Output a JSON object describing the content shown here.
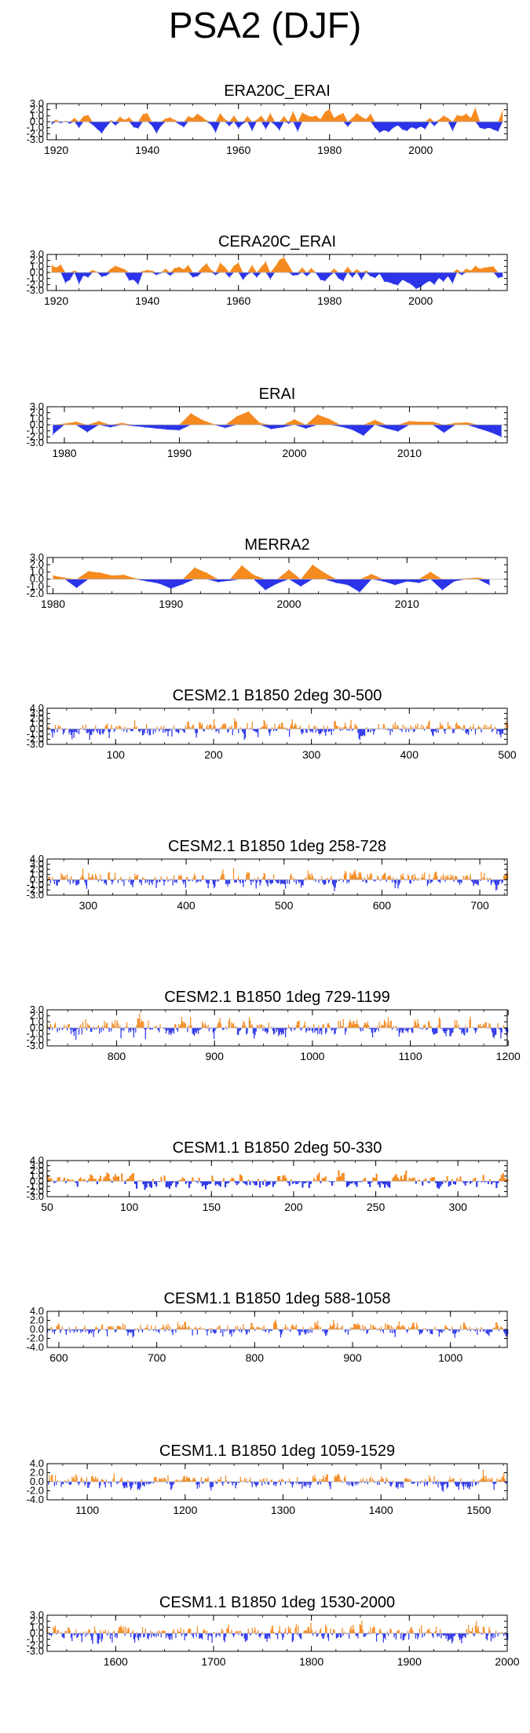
{
  "figure": {
    "title": "PSA2 (DJF)"
  },
  "colors": {
    "positive": "#f58a1f",
    "negative": "#2b34e8",
    "axis": "#000000",
    "zero_line": "#b0b0b0"
  },
  "chart_data": [
    {
      "type": "area",
      "title": "ERA20C_ERAI",
      "xlim": [
        1918,
        2019
      ],
      "ylim": [
        -3,
        3
      ],
      "yticks": [
        "3.0",
        "2.0",
        "1.0",
        "0.0",
        "-1.0",
        "-2.0",
        "-3.0"
      ],
      "xticks": [
        1920,
        1940,
        1960,
        1980,
        2000
      ],
      "xtick_labels": [
        "1920",
        "1940",
        "1960",
        "1980",
        "2000"
      ],
      "x": [
        1919,
        1920,
        1921,
        1922,
        1923,
        1924,
        1925,
        1926,
        1927,
        1928,
        1929,
        1930,
        1931,
        1932,
        1933,
        1934,
        1935,
        1936,
        1937,
        1938,
        1939,
        1940,
        1941,
        1942,
        1943,
        1944,
        1945,
        1946,
        1947,
        1948,
        1949,
        1950,
        1951,
        1952,
        1953,
        1954,
        1955,
        1956,
        1957,
        1958,
        1959,
        1960,
        1961,
        1962,
        1963,
        1964,
        1965,
        1966,
        1967,
        1968,
        1969,
        1970,
        1971,
        1972,
        1973,
        1974,
        1975,
        1976,
        1977,
        1978,
        1979,
        1980,
        1981,
        1982,
        1983,
        1984,
        1985,
        1986,
        1987,
        1988,
        1989,
        1990,
        1991,
        1992,
        1993,
        1994,
        1995,
        1996,
        1997,
        1998,
        1999,
        2000,
        2001,
        2002,
        2003,
        2004,
        2005,
        2006,
        2007,
        2008,
        2009,
        2010,
        2011,
        2012,
        2013,
        2014,
        2015,
        2016,
        2017,
        2018
      ],
      "values": [
        -0.4,
        0.3,
        -0.2,
        0.1,
        -0.3,
        0.6,
        -1.0,
        0.9,
        1.1,
        -0.5,
        -1.2,
        -1.9,
        -0.8,
        0.2,
        -0.6,
        0.8,
        0.3,
        0.7,
        -0.9,
        -1.1,
        1.2,
        1.4,
        -0.6,
        -1.9,
        -0.7,
        0.5,
        0.7,
        0.3,
        -0.4,
        -0.9,
        0.9,
        0.6,
        1.3,
        0.8,
        0.2,
        -0.5,
        -1.8,
        1.4,
        0.4,
        -0.7,
        1.0,
        -1.1,
        -0.3,
        0.9,
        -1.5,
        0.3,
        1.0,
        -1.2,
        1.4,
        -0.5,
        -1.4,
        0.9,
        -0.3,
        1.7,
        -1.6,
        1.5,
        1.1,
        0.8,
        1.0,
        0.4,
        1.6,
        2.1,
        0.6,
        1.1,
        1.4,
        -0.8,
        0.6,
        1.4,
        0.8,
        0.4,
        1.3,
        -1.0,
        -1.8,
        -1.4,
        -1.7,
        -1.0,
        -0.6,
        -1.3,
        -1.5,
        -0.9,
        -1.2,
        -0.8,
        -1.2,
        0.6,
        -0.7,
        0.3,
        1.0,
        0.6,
        -1.5,
        1.1,
        0.9,
        1.3,
        0.6,
        2.3,
        -1.0,
        -1.2,
        -1.0,
        -1.3,
        -1.6,
        1.9
      ]
    },
    {
      "type": "area",
      "title": "CERA20C_ERAI",
      "xlim": [
        1918,
        2019
      ],
      "ylim": [
        -3,
        3
      ],
      "yticks": [
        "3.0",
        "2.0",
        "1.0",
        "0.0",
        "-1.0",
        "-2.0",
        "-3.0"
      ],
      "xticks": [
        1920,
        1940,
        1960,
        1980,
        2000
      ],
      "xtick_labels": [
        "1920",
        "1940",
        "1960",
        "1980",
        "2000"
      ],
      "x": [
        1919,
        1920,
        1921,
        1922,
        1923,
        1924,
        1925,
        1926,
        1927,
        1928,
        1929,
        1930,
        1931,
        1932,
        1933,
        1934,
        1935,
        1936,
        1937,
        1938,
        1939,
        1940,
        1941,
        1942,
        1943,
        1944,
        1945,
        1946,
        1947,
        1948,
        1949,
        1950,
        1951,
        1952,
        1953,
        1954,
        1955,
        1956,
        1957,
        1958,
        1959,
        1960,
        1961,
        1962,
        1963,
        1964,
        1965,
        1966,
        1967,
        1968,
        1969,
        1970,
        1971,
        1972,
        1973,
        1974,
        1975,
        1976,
        1977,
        1978,
        1979,
        1980,
        1981,
        1982,
        1983,
        1984,
        1985,
        1986,
        1987,
        1988,
        1989,
        1990,
        1991,
        1992,
        1993,
        1994,
        1995,
        1996,
        1997,
        1998,
        1999,
        2000,
        2001,
        2002,
        2003,
        2004,
        2005,
        2006,
        2007,
        2008,
        2009,
        2010,
        2011,
        2012,
        2013,
        2014,
        2015,
        2016,
        2017,
        2018
      ],
      "values": [
        1.2,
        0.8,
        1.3,
        -1.7,
        -1.2,
        0.3,
        -1.9,
        -0.5,
        -0.8,
        0.4,
        0.1,
        -0.7,
        -0.5,
        0.6,
        1.1,
        0.8,
        0.5,
        -1.3,
        -1.2,
        -2.0,
        0.2,
        0.4,
        0.3,
        -0.4,
        -0.1,
        0.6,
        -0.5,
        0.7,
        0.9,
        0.5,
        1.2,
        -0.8,
        -0.6,
        0.8,
        1.5,
        0.4,
        -0.4,
        1.6,
        0.9,
        -0.8,
        1.1,
        1.6,
        -1.2,
        -0.3,
        1.2,
        -0.8,
        0.9,
        1.8,
        -1.1,
        0.9,
        2.1,
        2.5,
        1.2,
        -0.5,
        -0.4,
        0.8,
        -0.6,
        0.7,
        -0.1,
        -1.2,
        -1.4,
        -0.6,
        0.6,
        -1.0,
        -1.4,
        0.9,
        -0.8,
        0.5,
        -1.2,
        0.3,
        -0.6,
        -0.9,
        -0.2,
        -1.5,
        -1.6,
        -1.9,
        -2.1,
        -1.2,
        -1.6,
        -2.0,
        -2.7,
        -2.4,
        -1.8,
        -1.4,
        -2.0,
        -0.9,
        -1.5,
        -0.6,
        -1.8,
        0.5,
        -0.4,
        0.6,
        0.3,
        1.1,
        0.6,
        0.8,
        0.9,
        1.0,
        -0.9,
        -0.7
      ]
    },
    {
      "type": "area",
      "title": "ERAI",
      "xlim": [
        1978.5,
        2018.5
      ],
      "ylim": [
        -3,
        3
      ],
      "yticks": [
        "3.0",
        "2.0",
        "1.0",
        "0.0",
        "-1.0",
        "-2.0",
        "-3.0"
      ],
      "xticks": [
        1980,
        1990,
        2000,
        2010
      ],
      "xtick_labels": [
        "1980",
        "1990",
        "2000",
        "2010"
      ],
      "x": [
        1979,
        1980,
        1981,
        1982,
        1983,
        1984,
        1985,
        1986,
        1987,
        1988,
        1989,
        1990,
        1991,
        1992,
        1993,
        1994,
        1995,
        1996,
        1997,
        1998,
        1999,
        2000,
        2001,
        2002,
        2003,
        2004,
        2005,
        2006,
        2007,
        2008,
        2009,
        2010,
        2011,
        2012,
        2013,
        2014,
        2015,
        2016,
        2017,
        2018
      ],
      "values": [
        -1.6,
        0.2,
        0.5,
        -1.2,
        0.6,
        -0.4,
        0.3,
        -0.2,
        -0.4,
        -0.6,
        -0.8,
        -0.9,
        1.9,
        0.8,
        0.1,
        -0.5,
        1.4,
        2.2,
        0.3,
        -0.7,
        -0.4,
        0.9,
        -0.6,
        1.7,
        1.0,
        -0.3,
        -0.8,
        -1.8,
        0.8,
        -0.6,
        -1.1,
        0.6,
        0.5,
        0.5,
        -1.3,
        0.3,
        0.4,
        -0.6,
        -1.2,
        -2.0
      ]
    },
    {
      "type": "area",
      "title": "MERRA2",
      "xlim": [
        1979.5,
        2018.5
      ],
      "ylim": [
        -2,
        3
      ],
      "yticks": [
        "3.0",
        "2.0",
        "1.0",
        "0.0",
        "-1.0",
        "-2.0"
      ],
      "xticks": [
        1980,
        1990,
        2000,
        2010
      ],
      "xtick_labels": [
        "1980",
        "1990",
        "2000",
        "2010"
      ],
      "x": [
        1980,
        1981,
        1982,
        1983,
        1984,
        1985,
        1986,
        1987,
        1988,
        1989,
        1990,
        1991,
        1992,
        1993,
        1994,
        1995,
        1996,
        1997,
        1998,
        1999,
        2000,
        2001,
        2002,
        2003,
        2004,
        2005,
        2006,
        2007,
        2008,
        2009,
        2010,
        2011,
        2012,
        2013,
        2014,
        2015,
        2016,
        2017
      ],
      "values": [
        0.5,
        0.2,
        -1.2,
        1.1,
        0.9,
        0.5,
        0.6,
        0.1,
        -0.3,
        -0.6,
        -1.3,
        -0.7,
        1.6,
        0.9,
        -0.4,
        -0.2,
        1.9,
        0.6,
        -1.5,
        -0.6,
        1.3,
        -1.0,
        2.0,
        0.9,
        -0.5,
        -0.8,
        -1.8,
        0.7,
        -0.3,
        -0.8,
        -0.3,
        -0.5,
        1.0,
        -1.5,
        -0.3,
        0.1,
        0.2,
        -0.8
      ]
    },
    {
      "type": "bar",
      "title": "CESM2.1 B1850 2deg 30-500",
      "xlim": [
        30,
        500
      ],
      "ylim": [
        -3,
        4
      ],
      "yticks": [
        "4.0",
        "3.0",
        "2.0",
        "1.0",
        "0.0",
        "-1.0",
        "-2.0",
        "-3.0"
      ],
      "xticks": [
        100,
        200,
        300,
        400,
        500
      ],
      "xtick_labels": [
        "100",
        "200",
        "300",
        "400",
        "500"
      ]
    },
    {
      "type": "bar",
      "title": "CESM2.1 B1850 1deg 258-728",
      "xlim": [
        258,
        728
      ],
      "ylim": [
        -3,
        4
      ],
      "yticks": [
        "4.0",
        "3.0",
        "2.0",
        "1.0",
        "0.0",
        "-1.0",
        "-2.0",
        "-3.0"
      ],
      "xticks": [
        300,
        400,
        500,
        600,
        700
      ],
      "xtick_labels": [
        "300",
        "400",
        "500",
        "600",
        "700"
      ]
    },
    {
      "type": "bar",
      "title": "CESM2.1 B1850 1deg 729-1199",
      "xlim": [
        729,
        1199
      ],
      "ylim": [
        -3,
        3
      ],
      "yticks": [
        "3.0",
        "2.0",
        "1.0",
        "0.0",
        "-1.0",
        "-2.0",
        "-3.0"
      ],
      "xticks": [
        800,
        900,
        1000,
        1100,
        1200
      ],
      "xtick_labels": [
        "800",
        "900",
        "1000",
        "1100",
        "1200"
      ]
    },
    {
      "type": "bar",
      "title": "CESM1.1 B1850 2deg 50-330",
      "xlim": [
        50,
        330
      ],
      "ylim": [
        -3,
        4
      ],
      "yticks": [
        "4.0",
        "3.0",
        "2.0",
        "1.0",
        "0.0",
        "-1.0",
        "-2.0",
        "-3.0"
      ],
      "xticks": [
        50,
        100,
        150,
        200,
        250,
        300
      ],
      "xtick_labels": [
        "50",
        "100",
        "150",
        "200",
        "250",
        "300"
      ]
    },
    {
      "type": "bar",
      "title": "CESM1.1 B1850 1deg 588-1058",
      "xlim": [
        588,
        1058
      ],
      "ylim": [
        -4,
        4
      ],
      "yticks": [
        "4.0",
        "2.0",
        "0.0",
        "-2.0",
        "-4.0"
      ],
      "xticks": [
        600,
        700,
        800,
        900,
        1000
      ],
      "xtick_labels": [
        "600",
        "700",
        "800",
        "900",
        "1000"
      ]
    },
    {
      "type": "bar",
      "title": "CESM1.1 B1850 1deg 1059-1529",
      "xlim": [
        1059,
        1529
      ],
      "ylim": [
        -4,
        4
      ],
      "yticks": [
        "4.0",
        "2.0",
        "0.0",
        "-2.0",
        "-4.0"
      ],
      "xticks": [
        1100,
        1200,
        1300,
        1400,
        1500
      ],
      "xtick_labels": [
        "1100",
        "1200",
        "1300",
        "1400",
        "1500"
      ]
    },
    {
      "type": "bar",
      "title": "CESM1.1 B1850 1deg 1530-2000",
      "xlim": [
        1530,
        2000
      ],
      "ylim": [
        -3,
        3
      ],
      "yticks": [
        "3.0",
        "2.0",
        "1.0",
        "0.0",
        "-1.0",
        "-2.0",
        "-3.0"
      ],
      "xticks": [
        1600,
        1700,
        1800,
        1900,
        2000
      ],
      "xtick_labels": [
        "1600",
        "1700",
        "1800",
        "1900",
        "2000"
      ]
    }
  ]
}
